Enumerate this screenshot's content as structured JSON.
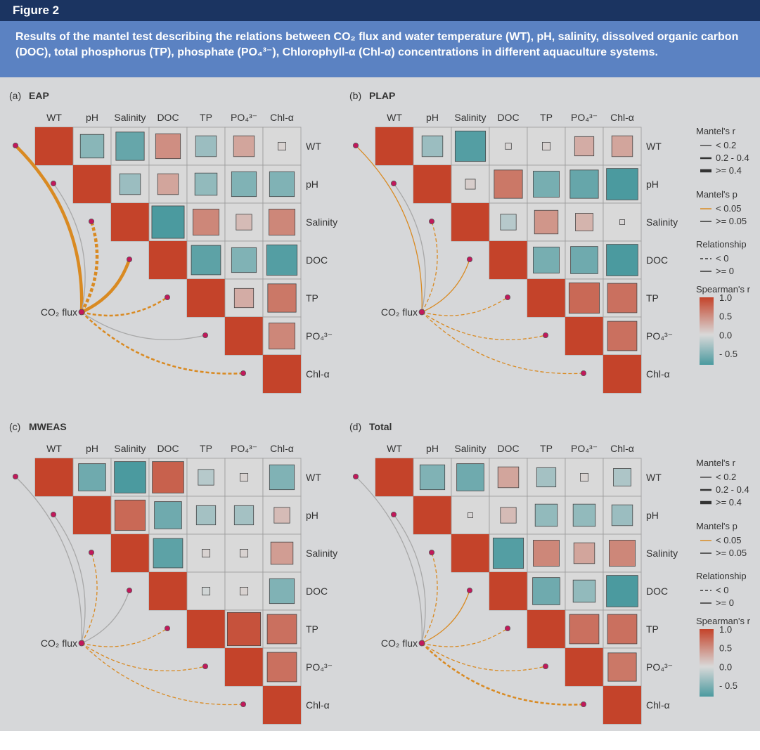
{
  "figure": {
    "label": "Figure 2",
    "caption": "Results of the mantel test describing the relations between CO₂ flux and water temperature (WT), pH, salinity, dissolved organic carbon (DOC), total phosphorus (TP), phosphate (PO₄³⁻), Chlorophyll-α (Chl-α) concentrations in different aquaculture systems."
  },
  "colors": {
    "header": "#1b3461",
    "caption_bg": "#5b82c2",
    "panel_bg": "#d6d7d9",
    "positive": "#c4432a",
    "neutral": "#d9d9d9",
    "negative": "#4b9a9f",
    "sig_link": "#d98a22",
    "nonsig_link": "#a8a8a8",
    "node": "#c2185b"
  },
  "chart_data": {
    "type": "heatmap",
    "variables": [
      "WT",
      "pH",
      "Salinity",
      "DOC",
      "TP",
      "PO₄³⁻",
      "Chl-α"
    ],
    "flux_label": "CO₂ flux",
    "panels": [
      {
        "id": "a",
        "tag": "(a)",
        "title": "EAP",
        "spearman": [
          [
            1,
            -0.45,
            -0.65,
            0.5,
            -0.35,
            0.35,
            0.05
          ],
          [
            null,
            1,
            -0.35,
            0.35,
            -0.4,
            -0.5,
            -0.5
          ],
          [
            null,
            null,
            1,
            -0.85,
            0.55,
            0.2,
            0.55
          ],
          [
            null,
            null,
            null,
            1,
            -0.7,
            -0.5,
            -0.75
          ],
          [
            null,
            null,
            null,
            null,
            1,
            0.3,
            0.65
          ],
          [
            null,
            null,
            null,
            null,
            null,
            1,
            0.55
          ],
          [
            null,
            null,
            null,
            null,
            null,
            null,
            1
          ]
        ],
        "mantel_r": [
          ">= 0.4",
          "< 0.2",
          ">= 0.4",
          ">= 0.4",
          "0.2 - 0.4",
          "< 0.2",
          "0.2 - 0.4"
        ],
        "mantel_p": [
          "< 0.05",
          ">= 0.05",
          "< 0.05",
          "< 0.05",
          "< 0.05",
          ">= 0.05",
          "< 0.05"
        ],
        "relationship": [
          ">= 0",
          ">= 0",
          "< 0",
          ">= 0",
          "< 0",
          ">= 0",
          "< 0"
        ]
      },
      {
        "id": "b",
        "tag": "(b)",
        "title": "PLAP",
        "spearman": [
          [
            1,
            -0.35,
            -0.75,
            0.03,
            0.05,
            0.3,
            0.35
          ],
          [
            null,
            1,
            0.08,
            0.65,
            -0.55,
            -0.65,
            -0.8
          ],
          [
            null,
            null,
            1,
            -0.2,
            0.45,
            0.25,
            0.02
          ],
          [
            null,
            null,
            null,
            1,
            -0.55,
            -0.6,
            -0.8
          ],
          [
            null,
            null,
            null,
            null,
            1,
            0.75,
            0.7
          ],
          [
            null,
            null,
            null,
            null,
            null,
            1,
            0.7
          ],
          [
            null,
            null,
            null,
            null,
            null,
            null,
            1
          ]
        ],
        "mantel_r": [
          "< 0.2",
          "< 0.2",
          "< 0.2",
          "< 0.2",
          "< 0.2",
          "< 0.2",
          "< 0.2"
        ],
        "mantel_p": [
          "< 0.05",
          ">= 0.05",
          "< 0.05",
          "< 0.05",
          "< 0.05",
          "< 0.05",
          "< 0.05"
        ],
        "relationship": [
          ">= 0",
          ">= 0",
          "< 0",
          ">= 0",
          "< 0",
          "< 0",
          "< 0"
        ]
      },
      {
        "id": "c",
        "tag": "(c)",
        "title": "MWEAS",
        "spearman": [
          [
            1,
            -0.6,
            -0.8,
            0.8,
            -0.2,
            0.05,
            -0.5
          ],
          [
            null,
            1,
            0.75,
            -0.6,
            -0.3,
            -0.3,
            0.2
          ],
          [
            null,
            null,
            1,
            -0.7,
            0.05,
            0.05,
            0.4
          ],
          [
            null,
            null,
            null,
            1,
            -0.05,
            0.05,
            -0.5
          ],
          [
            null,
            null,
            null,
            null,
            1,
            0.9,
            0.7
          ],
          [
            null,
            null,
            null,
            null,
            null,
            1,
            0.7
          ],
          [
            null,
            null,
            null,
            null,
            null,
            null,
            1
          ]
        ],
        "mantel_r": [
          "< 0.2",
          "< 0.2",
          "< 0.2",
          "< 0.2",
          "< 0.2",
          "< 0.2",
          "< 0.2"
        ],
        "mantel_p": [
          ">= 0.05",
          ">= 0.05",
          "< 0.05",
          ">= 0.05",
          "< 0.05",
          "< 0.05",
          "< 0.05"
        ],
        "relationship": [
          ">= 0",
          ">= 0",
          "< 0",
          ">= 0",
          "< 0",
          "< 0",
          "< 0"
        ]
      },
      {
        "id": "d",
        "tag": "(d)",
        "title": "Total",
        "spearman": [
          [
            1,
            -0.5,
            -0.6,
            0.35,
            -0.3,
            0.05,
            -0.25
          ],
          [
            null,
            1,
            0.02,
            0.2,
            -0.4,
            -0.4,
            -0.35
          ],
          [
            null,
            null,
            1,
            -0.75,
            0.55,
            0.35,
            0.55
          ],
          [
            null,
            null,
            null,
            1,
            -0.6,
            -0.4,
            -0.8
          ],
          [
            null,
            null,
            null,
            null,
            1,
            0.7,
            0.7
          ],
          [
            null,
            null,
            null,
            null,
            null,
            1,
            0.65
          ],
          [
            null,
            null,
            null,
            null,
            null,
            null,
            1
          ]
        ],
        "mantel_r": [
          "< 0.2",
          "< 0.2",
          "< 0.2",
          "< 0.2",
          "< 0.2",
          "< 0.2",
          "0.2 - 0.4"
        ],
        "mantel_p": [
          ">= 0.05",
          ">= 0.05",
          "< 0.05",
          "< 0.05",
          "< 0.05",
          "< 0.05",
          "< 0.05"
        ],
        "relationship": [
          ">= 0",
          ">= 0",
          "< 0",
          ">= 0",
          "< 0",
          "< 0",
          "< 0"
        ]
      }
    ],
    "legend": {
      "mantel_r": {
        "title": "Mantel's r",
        "entries": [
          "< 0.2",
          "0.2 - 0.4",
          ">= 0.4"
        ]
      },
      "mantel_p": {
        "title": "Mantel's p",
        "entries": [
          "< 0.05",
          ">= 0.05"
        ]
      },
      "relationship": {
        "title": "Relationship",
        "entries": [
          "< 0",
          ">= 0"
        ]
      },
      "spearman": {
        "title": "Spearman's r",
        "ticks": [
          1.0,
          0.5,
          0.0,
          -0.5
        ],
        "tick_labels": [
          "1.0",
          "0.5",
          "0.0",
          "- 0.5"
        ],
        "range": [
          -0.8,
          1.0
        ]
      }
    }
  }
}
